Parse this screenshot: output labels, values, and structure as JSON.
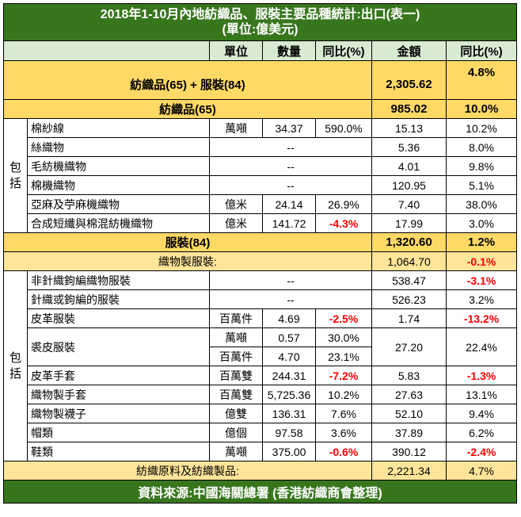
{
  "title": "2018年1-10月內地紡織品、服裝主要品種統計:出口(表一)",
  "subtitle": "(單位:億美元)",
  "headers": {
    "unit": "單位",
    "qty": "數量",
    "yoy": "同比(%)",
    "amount": "金額",
    "yoy2": "同比(%)"
  },
  "total": {
    "label": "紡織品(65) + 服裝(84)",
    "amount": "2,305.62",
    "yoy": "4.8%"
  },
  "textiles": {
    "label": "紡織品(65)",
    "amount": "985.02",
    "yoy": "10.0%"
  },
  "side_label": "包括",
  "textile_rows": [
    {
      "name": "棉紗線",
      "unit": "萬噸",
      "qty": "34.37",
      "qyoy": "590.0%",
      "amount": "15.13",
      "yoy": "10.2%"
    },
    {
      "name": "絲織物",
      "dash": "--",
      "amount": "5.36",
      "yoy": "8.0%"
    },
    {
      "name": "毛紡機織物",
      "dash": "--",
      "amount": "4.01",
      "yoy": "9.8%"
    },
    {
      "name": "棉機織物",
      "dash": "--",
      "amount": "120.95",
      "yoy": "5.1%"
    },
    {
      "name": "亞麻及苧麻機織物",
      "unit": "億米",
      "qty": "24.14",
      "qyoy": "26.9%",
      "amount": "7.40",
      "yoy": "38.0%"
    },
    {
      "name": "合成短纖與棉混紡機織物",
      "unit": "億米",
      "qty": "141.72",
      "qyoy": "-4.3%",
      "amount": "17.99",
      "yoy": "3.0%"
    }
  ],
  "apparel": {
    "label": "服裝(84)",
    "amount": "1,320.60",
    "yoy": "1.2%"
  },
  "woven": {
    "label": "織物製服裝:",
    "amount": "1,064.70",
    "yoy": "-0.1%"
  },
  "apparel_rows": [
    {
      "name": "非針織鉤編織物服裝",
      "dash": "--",
      "amount": "538.47",
      "yoy": "-3.1%"
    },
    {
      "name": "針織或鉤編的服裝",
      "dash": "--",
      "amount": "526.23",
      "yoy": "3.2%"
    },
    {
      "name": "皮革服裝",
      "unit": "百萬件",
      "qty": "4.69",
      "qyoy": "-2.5%",
      "amount": "1.74",
      "yoy": "-13.2%"
    },
    {
      "name": "裘皮服裝",
      "unit": "萬噸",
      "qty": "0.57",
      "qyoy": "30.0%",
      "unit2": "百萬件",
      "qty2": "4.70",
      "qyoy2": "23.1%",
      "amount": "27.20",
      "yoy": "22.4%"
    },
    {
      "name": "皮革手套",
      "unit": "百萬雙",
      "qty": "244.31",
      "qyoy": "-7.2%",
      "amount": "5.83",
      "yoy": "-1.3%"
    },
    {
      "name": "織物製手套",
      "unit": "百萬雙",
      "qty": "5,725.36",
      "qyoy": "10.2%",
      "amount": "27.63",
      "yoy": "13.1%"
    },
    {
      "name": "織物製襪子",
      "unit": "億雙",
      "qty": "136.31",
      "qyoy": "7.6%",
      "amount": "52.10",
      "yoy": "9.4%"
    },
    {
      "name": "帽類",
      "unit": "億個",
      "qty": "97.58",
      "qyoy": "3.6%",
      "amount": "37.89",
      "yoy": "6.2%"
    },
    {
      "name": "鞋類",
      "unit": "萬噸",
      "qty": "375.00",
      "qyoy": "-0.6%",
      "amount": "390.12",
      "yoy": "-2.4%"
    }
  ],
  "raw": {
    "label": "紡織原料及紡織製品:",
    "amount": "2,221.34",
    "yoy": "4.7%"
  },
  "source": "資料來源:中國海關總署 (香港紡織商會整理)"
}
